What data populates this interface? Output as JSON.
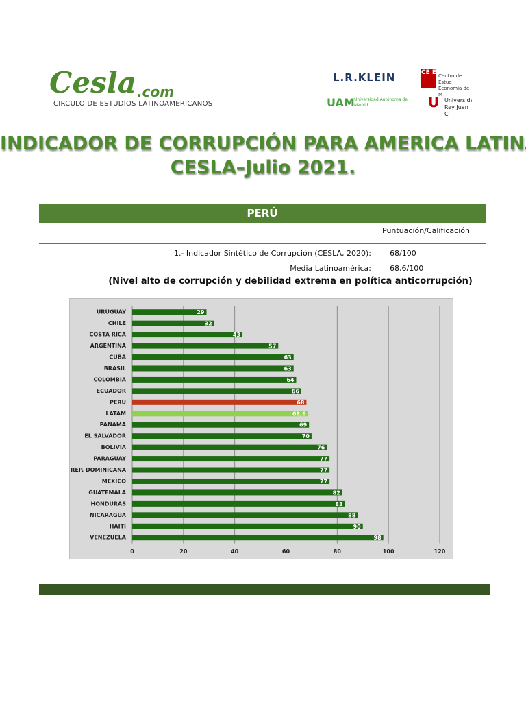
{
  "header": {
    "logo_main": "Cesla",
    "logo_domain": ".com",
    "logo_subtitle": "CIRCULO DE ESTUDIOS LATINOAMERICANOS",
    "klein": "L.R.KLEIN",
    "uam": "UAM",
    "uam_name": "Universidad Autónoma de Madrid",
    "ceem": "CE EM",
    "ceem_name": "Centro de Estud Economía de M",
    "urjc": "U",
    "urjc_name": "Universida Rey Juan C"
  },
  "title": [
    "INDICADOR DE CORRUPCIÓN PARA AMERICA LATINA",
    "CESLA–Julio 2021."
  ],
  "section": "PERÚ",
  "score_header": "Puntuación/Calificación",
  "rows": [
    [
      "1.- Indicador Sintético de Corrupción (CESLA, 2020):",
      "68/100"
    ],
    [
      "Media Latinoamérica:",
      "68,6/100"
    ]
  ],
  "note": "(Nivel alto de corrupción y debilidad extrema en política anticorrupción)",
  "chart_data": {
    "type": "bar",
    "orientation": "horizontal",
    "categories": [
      "URUGUAY",
      "CHILE",
      "COSTA RICA",
      "ARGENTINA",
      "CUBA",
      "BRASIL",
      "COLOMBIA",
      "ECUADOR",
      "PERU",
      "LATAM",
      "PANAMA",
      "EL SALVADOR",
      "BOLIVIA",
      "PARAGUAY",
      "REP. DOMINICANA",
      "MEXICO",
      "GUATEMALA",
      "HONDURAS",
      "NICARAGUA",
      "HAITI",
      "VENEZUELA"
    ],
    "values": [
      29,
      32,
      43,
      57,
      63,
      63,
      64,
      66,
      68,
      68.6,
      69,
      70,
      76,
      77,
      77,
      77,
      82,
      83,
      88,
      90,
      98
    ],
    "value_labels": [
      "29",
      "32",
      "43",
      "57",
      "63",
      "63",
      "64",
      "66",
      "68",
      "68,6",
      "69",
      "70",
      "76",
      "77",
      "77",
      "77",
      "82",
      "83",
      "88",
      "90",
      "98"
    ],
    "colors": [
      "#1e6b14",
      "#1e6b14",
      "#1e6b14",
      "#1e6b14",
      "#1e6b14",
      "#1e6b14",
      "#1e6b14",
      "#1e6b14",
      "#c0391b",
      "#92d050",
      "#1e6b14",
      "#1e6b14",
      "#1e6b14",
      "#1e6b14",
      "#1e6b14",
      "#1e6b14",
      "#1e6b14",
      "#1e6b14",
      "#1e6b14",
      "#1e6b14",
      "#1e6b14"
    ],
    "xlim": [
      0,
      120
    ],
    "xticks": [
      0,
      20,
      40,
      60,
      80,
      100,
      120
    ],
    "grid": true
  }
}
